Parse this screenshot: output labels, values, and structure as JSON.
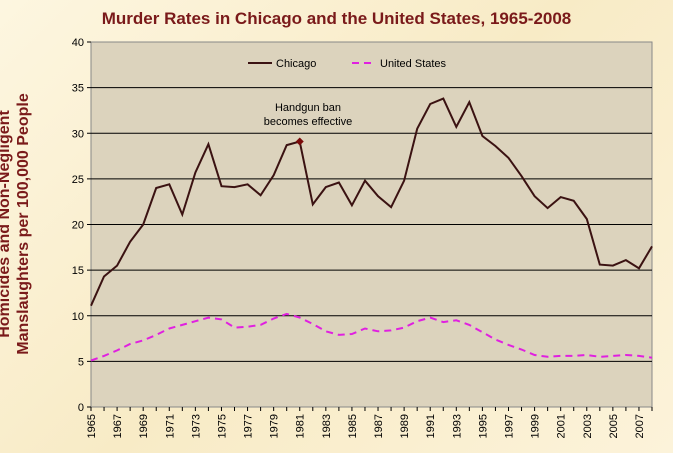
{
  "chart_data": {
    "type": "line",
    "title": "Murder Rates in Chicago and the United States, 1965-2008",
    "ylabel_line1": "Homicides and Non-Negligent",
    "ylabel_line2": "Manslaughters per 100,000 People",
    "xlabel": "",
    "ylim": [
      0,
      40
    ],
    "yticks": [
      0,
      5,
      10,
      15,
      20,
      25,
      30,
      35,
      40
    ],
    "xlim": [
      1965,
      2008
    ],
    "xtick_labels": [
      "1965",
      "1967",
      "1969",
      "1971",
      "1973",
      "1975",
      "1977",
      "1979",
      "1981",
      "1983",
      "1985",
      "1987",
      "1989",
      "1991",
      "1993",
      "1995",
      "1997",
      "1999",
      "2001",
      "2003",
      "2005",
      "2007"
    ],
    "grid": "horizontal",
    "legend_position": "top",
    "x": [
      1965,
      1966,
      1967,
      1968,
      1969,
      1970,
      1971,
      1972,
      1973,
      1974,
      1975,
      1976,
      1977,
      1978,
      1979,
      1980,
      1981,
      1982,
      1983,
      1984,
      1985,
      1986,
      1987,
      1988,
      1989,
      1990,
      1991,
      1992,
      1993,
      1994,
      1995,
      1996,
      1997,
      1998,
      1999,
      2000,
      2001,
      2002,
      2003,
      2004,
      2005,
      2006,
      2007,
      2008
    ],
    "series": [
      {
        "name": "Chicago",
        "color": "#3b1212",
        "style": "solid",
        "values": [
          11.1,
          14.3,
          15.5,
          18.1,
          20.0,
          24.0,
          24.4,
          21.1,
          25.7,
          28.8,
          24.2,
          24.1,
          24.4,
          23.2,
          25.4,
          28.7,
          29.1,
          22.2,
          24.1,
          24.6,
          22.1,
          24.8,
          23.1,
          21.9,
          24.8,
          30.5,
          33.2,
          33.8,
          30.7,
          33.4,
          29.7,
          28.6,
          27.3,
          25.3,
          23.1,
          21.8,
          23.0,
          22.6,
          20.6,
          15.6,
          15.5,
          16.1,
          15.2,
          17.6
        ]
      },
      {
        "name": "United States",
        "color": "#e020e0",
        "style": "dashed",
        "values": [
          5.1,
          5.6,
          6.2,
          6.9,
          7.3,
          7.9,
          8.6,
          9.0,
          9.4,
          9.8,
          9.6,
          8.7,
          8.8,
          9.0,
          9.7,
          10.2,
          9.8,
          9.1,
          8.3,
          7.9,
          8.0,
          8.6,
          8.3,
          8.4,
          8.7,
          9.4,
          9.8,
          9.3,
          9.5,
          9.0,
          8.2,
          7.4,
          6.8,
          6.3,
          5.7,
          5.5,
          5.6,
          5.6,
          5.7,
          5.5,
          5.6,
          5.7,
          5.6,
          5.4
        ]
      }
    ],
    "annotation": {
      "line1": "Handgun ban",
      "line2": "becomes effective",
      "x": 1981,
      "y": 29.1,
      "marker_color": "#7a0a0a"
    }
  }
}
